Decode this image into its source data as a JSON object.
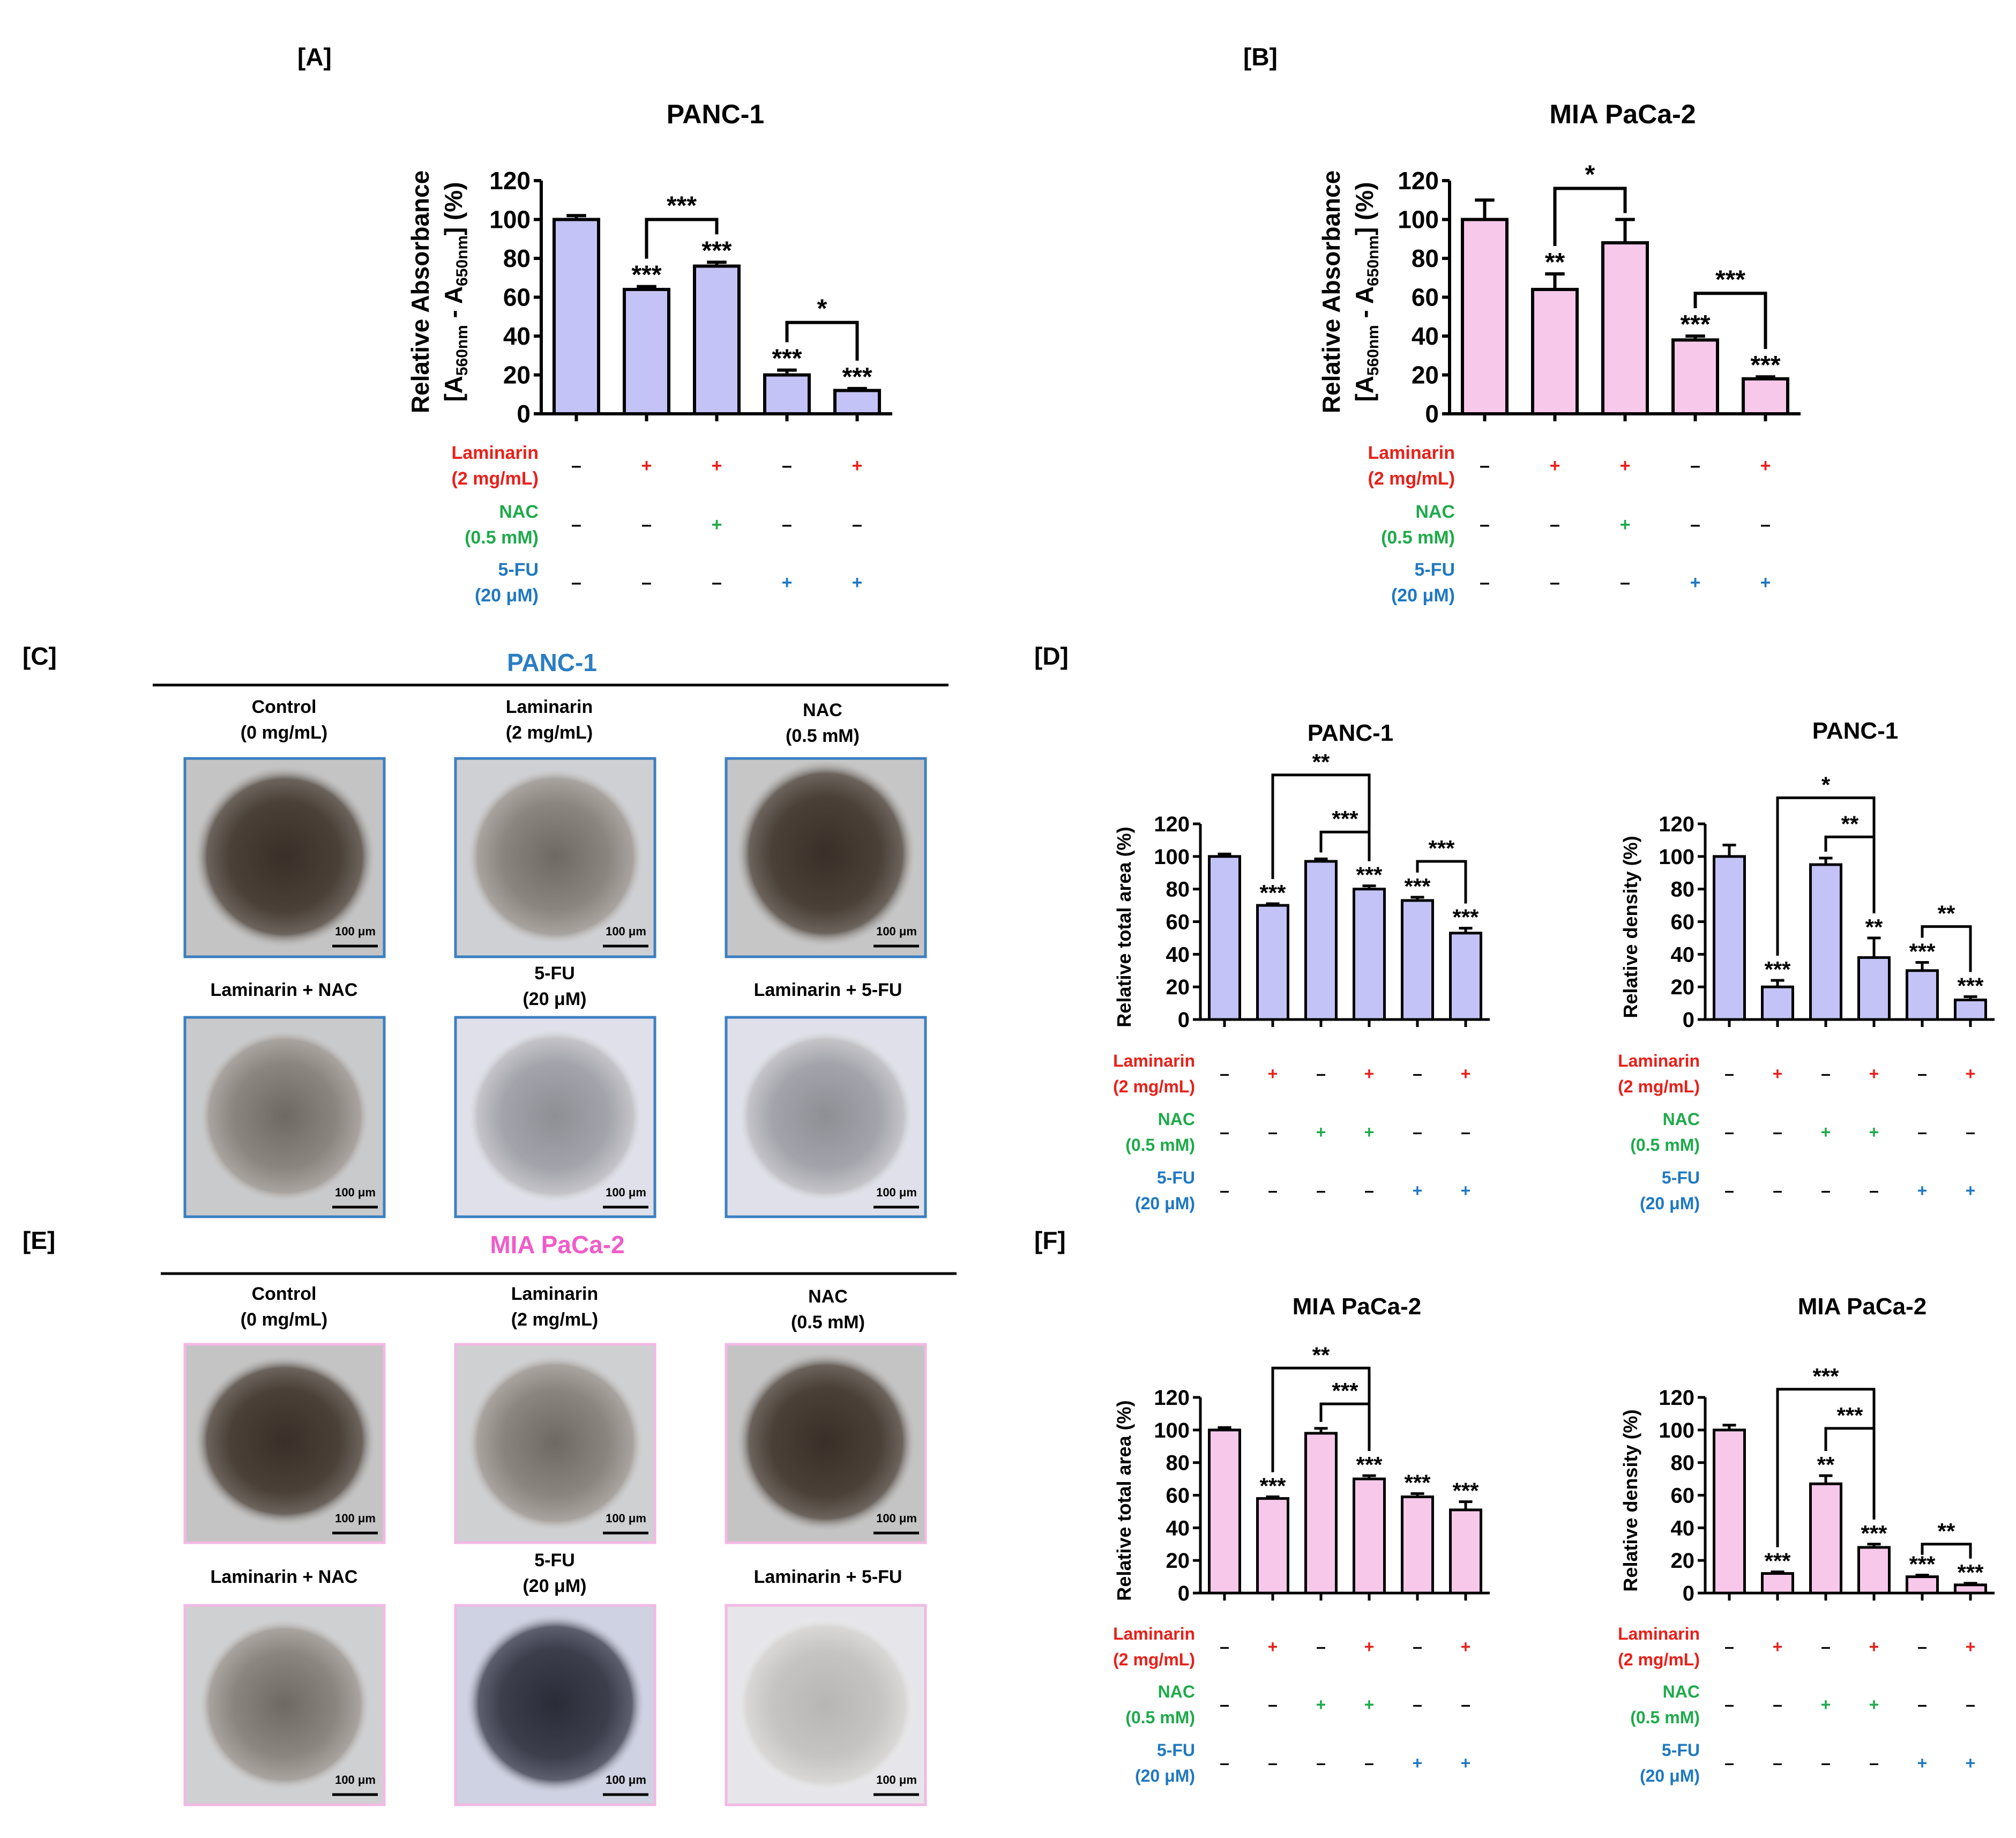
{
  "panel_labels": {
    "A": "[A]",
    "B": "[B]",
    "C": "[C]",
    "D": "[D]",
    "E": "[E]",
    "F": "[F]"
  },
  "colors": {
    "red": "#e8201a",
    "green": "#1faa4b",
    "blue": "#1f78c1",
    "panc_bar": "#c4c3f7",
    "mia_bar": "#f7c8ea",
    "panc_frame": "#3c7fc0",
    "mia_frame": "#f2b8e4",
    "mia_title": "#f05cc8"
  },
  "treatments": {
    "laminarin": {
      "line1": "Laminarin",
      "line2": "(2 mg/mL)",
      "signs": [
        "–",
        "+",
        "+",
        "–",
        "+"
      ]
    },
    "nac": {
      "line1": "NAC",
      "line2": "(0.5 mM)",
      "signs": [
        "–",
        "–",
        "+",
        "–",
        "–"
      ]
    },
    "fu": {
      "line1": "5-FU",
      "line2": "(20 μM)",
      "signs": [
        "–",
        "–",
        "–",
        "+",
        "+"
      ]
    }
  },
  "treatments_six": {
    "laminarin": {
      "line1": "Laminarin",
      "line2": "(2 mg/mL)",
      "signs": [
        "–",
        "+",
        "–",
        "+",
        "–",
        "+"
      ]
    },
    "nac": {
      "line1": "NAC",
      "line2": "(0.5 mM)",
      "signs": [
        "–",
        "–",
        "+",
        "+",
        "–",
        "–"
      ]
    },
    "fu": {
      "line1": "5-FU",
      "line2": "(20 μM)",
      "signs": [
        "–",
        "–",
        "–",
        "–",
        "+",
        "+"
      ]
    }
  },
  "panel_c": {
    "title": "PANC-1",
    "images": [
      {
        "line1": "Control",
        "line2": "(0 mg/mL)",
        "scale": "100 μm"
      },
      {
        "line1": "Laminarin",
        "line2": "(2 mg/mL)",
        "scale": "100 μm"
      },
      {
        "line1": "NAC",
        "line2": "(0.5 mM)",
        "scale": "100 μm"
      },
      {
        "line1": "Laminarin + NAC",
        "line2": "",
        "scale": "100 μm"
      },
      {
        "line1": "5-FU",
        "line2": "(20 μM)",
        "scale": "100 μm"
      },
      {
        "line1": "Laminarin + 5-FU",
        "line2": "",
        "scale": "100 μm"
      }
    ]
  },
  "panel_e": {
    "title": "MIA PaCa-2",
    "images": [
      {
        "line1": "Control",
        "line2": "(0 mg/mL)",
        "scale": "100 μm"
      },
      {
        "line1": "Laminarin",
        "line2": "(2 mg/mL)",
        "scale": "100 μm"
      },
      {
        "line1": "NAC",
        "line2": "(0.5 mM)",
        "scale": "100 μm"
      },
      {
        "line1": "Laminarin + NAC",
        "line2": "",
        "scale": "100 μm"
      },
      {
        "line1": "5-FU",
        "line2": "(20 μM)",
        "scale": "100 μm"
      },
      {
        "line1": "Laminarin + 5-FU",
        "line2": "",
        "scale": "100 μm"
      }
    ]
  },
  "chart_data": [
    {
      "id": "A",
      "type": "bar",
      "title": "PANC-1",
      "ylabel": "Relative Absorbance [A560nm - A650nm] (%)",
      "ylim": [
        0,
        120
      ],
      "yticks": [
        0,
        20,
        40,
        60,
        80,
        100,
        120
      ],
      "values": [
        100,
        64,
        76,
        20,
        12
      ],
      "errors": [
        2,
        1.5,
        2,
        2.5,
        1
      ],
      "stars": [
        "",
        "***",
        "***",
        "***",
        "***"
      ],
      "brackets": [
        {
          "from": 1,
          "to": 2,
          "label": "***",
          "y": 100
        },
        {
          "from": 3,
          "to": 4,
          "label": "*",
          "y": 47
        }
      ]
    },
    {
      "id": "B",
      "type": "bar",
      "title": "MIA PaCa-2",
      "ylabel": "Relative Absorbance [A560nm - A650nm] (%)",
      "ylim": [
        0,
        120
      ],
      "yticks": [
        0,
        20,
        40,
        60,
        80,
        100,
        120
      ],
      "values": [
        100,
        64,
        88,
        38,
        18
      ],
      "errors": [
        10,
        8,
        12,
        2,
        1
      ],
      "stars": [
        "",
        "**",
        "",
        "***",
        "***"
      ],
      "brackets": [
        {
          "from": 1,
          "to": 2,
          "label": "*",
          "y": 116
        },
        {
          "from": 3,
          "to": 4,
          "label": "***",
          "y": 62
        }
      ]
    },
    {
      "id": "D1",
      "type": "bar",
      "title": "PANC-1",
      "ylabel": "Relative total area (%)",
      "ylim": [
        0,
        120
      ],
      "yticks": [
        0,
        20,
        40,
        60,
        80,
        100,
        120
      ],
      "values": [
        100,
        70,
        97,
        80,
        73,
        53
      ],
      "errors": [
        1.5,
        1,
        1.5,
        2,
        2,
        3
      ],
      "stars": [
        "",
        "***",
        "",
        "***",
        "***",
        "***"
      ],
      "brackets": [
        {
          "from": 1,
          "to": 3,
          "label": "**",
          "y": 150
        },
        {
          "from": 2,
          "to": 3,
          "label": "***",
          "y": 115
        },
        {
          "from": 4,
          "to": 5,
          "label": "***",
          "y": 97
        }
      ]
    },
    {
      "id": "D2",
      "type": "bar",
      "title": "PANC-1",
      "ylabel": "Relative density (%)",
      "ylim": [
        0,
        120
      ],
      "yticks": [
        0,
        20,
        40,
        60,
        80,
        100,
        120
      ],
      "values": [
        100,
        20,
        95,
        38,
        30,
        12
      ],
      "errors": [
        7,
        4,
        4,
        12,
        5,
        2
      ],
      "stars": [
        "",
        "***",
        "",
        "**",
        "***",
        "***"
      ],
      "brackets": [
        {
          "from": 1,
          "to": 3,
          "label": "*",
          "y": 136
        },
        {
          "from": 2,
          "to": 3,
          "label": "**",
          "y": 112
        },
        {
          "from": 4,
          "to": 5,
          "label": "**",
          "y": 57
        }
      ]
    },
    {
      "id": "F1",
      "type": "bar",
      "title": "MIA PaCa-2",
      "ylabel": "Relative total area (%)",
      "ylim": [
        0,
        120
      ],
      "yticks": [
        0,
        20,
        40,
        60,
        80,
        100,
        120
      ],
      "values": [
        100,
        58,
        98,
        70,
        59,
        51
      ],
      "errors": [
        1.5,
        1,
        3,
        2,
        2,
        5
      ],
      "stars": [
        "",
        "***",
        "",
        "***",
        "***",
        "***"
      ],
      "brackets": [
        {
          "from": 1,
          "to": 3,
          "label": "**",
          "y": 138
        },
        {
          "from": 2,
          "to": 3,
          "label": "***",
          "y": 116
        }
      ]
    },
    {
      "id": "F2",
      "type": "bar",
      "title": "MIA PaCa-2",
      "ylabel": "Relative density (%)",
      "ylim": [
        0,
        120
      ],
      "yticks": [
        0,
        20,
        40,
        60,
        80,
        100,
        120
      ],
      "values": [
        100,
        12,
        67,
        28,
        10,
        5
      ],
      "errors": [
        3,
        1,
        5,
        2,
        1,
        1
      ],
      "stars": [
        "",
        "***",
        "**",
        "***",
        "***",
        "***"
      ],
      "brackets": [
        {
          "from": 1,
          "to": 3,
          "label": "***",
          "y": 125
        },
        {
          "from": 2,
          "to": 3,
          "label": "***",
          "y": 101
        },
        {
          "from": 4,
          "to": 5,
          "label": "**",
          "y": 30
        }
      ]
    }
  ]
}
